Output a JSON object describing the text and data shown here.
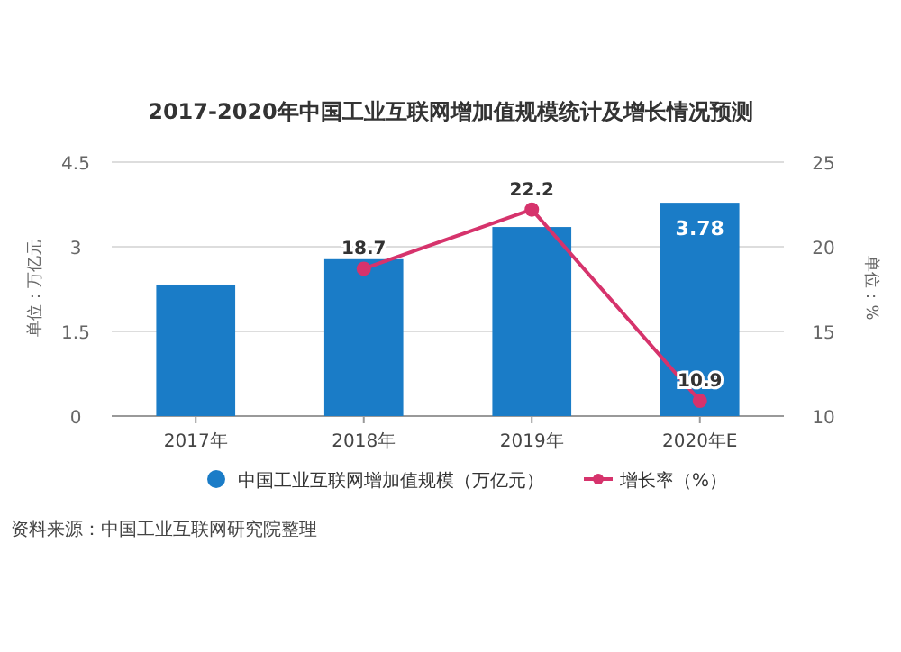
{
  "chart_data": {
    "type": "bar",
    "title": "2017-2020年中国工业互联网增加值规模统计及增长情况预测",
    "categories": [
      "2017年",
      "2018年",
      "2019年",
      "2020年E"
    ],
    "ylabel": "单位：万亿元",
    "y2label": "单位：%",
    "ylim": [
      0,
      4.5
    ],
    "yticks": [
      0,
      1.5,
      3,
      4.5
    ],
    "y2lim": [
      10,
      25
    ],
    "y2ticks": [
      10,
      15,
      20,
      25
    ],
    "grid": "y",
    "legend": "bottom",
    "series": [
      {
        "name": "中国工业互联网增加值规模（万亿元）",
        "color": "#1a7cc7",
        "values": [
          2.33,
          2.78,
          3.35,
          3.78
        ],
        "value_labels": [
          null,
          null,
          null,
          "3.78"
        ]
      },
      {
        "name": "增长率（%）",
        "type": "line",
        "axis": "y2",
        "color": "#d6336c",
        "marker": "circle",
        "values": [
          null,
          18.7,
          22.2,
          10.9
        ],
        "value_labels": [
          null,
          "18.7",
          "22.2",
          "10.9"
        ]
      }
    ],
    "annotations": [
      "资料来源：中国工业互联网研究院整理"
    ]
  }
}
